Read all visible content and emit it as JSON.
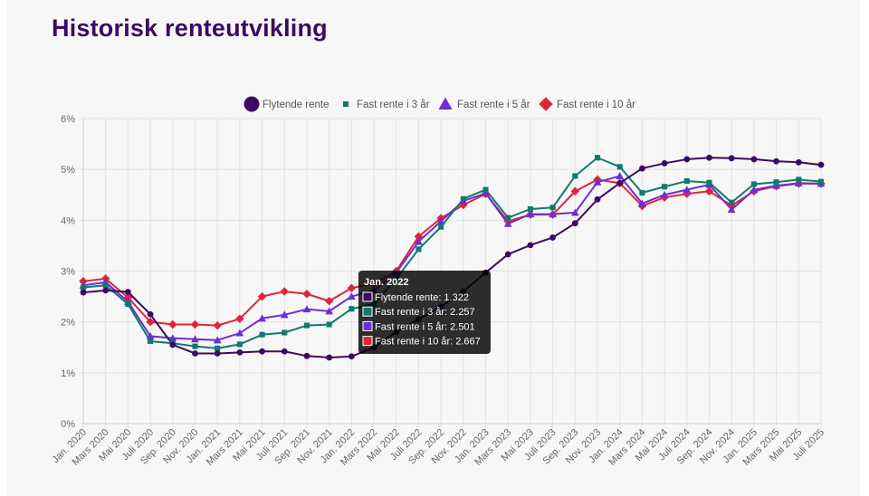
{
  "page": {
    "title": "Historisk renteutvikling"
  },
  "chart_data": {
    "type": "line",
    "title": "Historisk renteutvikling",
    "xlabel": "",
    "ylabel": "",
    "ylim": [
      0,
      6
    ],
    "y_ticks": [
      "0%",
      "1%",
      "2%",
      "3%",
      "4%",
      "5%",
      "6%"
    ],
    "grid": true,
    "legend_position": "top",
    "x": [
      "Jan. 2020",
      "Mars 2020",
      "Mai 2020",
      "Juli 2020",
      "Sep. 2020",
      "Nov. 2020",
      "Jan. 2021",
      "Mars 2021",
      "Mai 2021",
      "Juli 2021",
      "Sep. 2021",
      "Nov. 2021",
      "Jan. 2022",
      "Mars 2022",
      "Mai 2022",
      "Juli 2022",
      "Sep. 2022",
      "Nov. 2022",
      "Jan. 2023",
      "Mars 2023",
      "Mai 2023",
      "Juli 2023",
      "Sep. 2023",
      "Nov. 2023",
      "Jan. 2024",
      "Mars 2024",
      "Mai 2024",
      "Juli 2024",
      "Sep. 2024",
      "Nov. 2024",
      "Jan. 2025",
      "Mars 2025",
      "Mai 2025",
      "Juli 2025"
    ],
    "series": [
      {
        "name": "Flytende rente",
        "color": "#3b0a63",
        "marker": "circle",
        "values": [
          2.58,
          2.62,
          2.59,
          2.15,
          1.55,
          1.38,
          1.38,
          1.4,
          1.42,
          1.42,
          1.33,
          1.3,
          1.322,
          1.5,
          1.8,
          2.05,
          2.3,
          2.6,
          2.97,
          3.33,
          3.51,
          3.66,
          3.94,
          4.41,
          4.73,
          5.02,
          5.12,
          5.2,
          5.23,
          5.22,
          5.2,
          5.16,
          5.14,
          5.09
        ]
      },
      {
        "name": "Fast rente i 3 år",
        "color": "#0f7b6c",
        "marker": "square",
        "values": [
          2.68,
          2.72,
          2.35,
          1.62,
          1.58,
          1.52,
          1.48,
          1.56,
          1.75,
          1.79,
          1.93,
          1.95,
          2.257,
          2.35,
          2.85,
          3.43,
          3.87,
          4.42,
          4.6,
          4.05,
          4.22,
          4.25,
          4.87,
          5.23,
          5.05,
          4.54,
          4.66,
          4.77,
          4.74,
          4.35,
          4.71,
          4.75,
          4.8,
          4.76
        ]
      },
      {
        "name": "Fast rente i 5 år",
        "color": "#6b2fd6",
        "marker": "triangle",
        "values": [
          2.72,
          2.78,
          2.4,
          1.72,
          1.68,
          1.66,
          1.64,
          1.78,
          2.07,
          2.14,
          2.25,
          2.21,
          2.501,
          2.62,
          2.97,
          3.58,
          3.98,
          4.38,
          4.53,
          3.93,
          4.12,
          4.12,
          4.15,
          4.75,
          4.87,
          4.33,
          4.5,
          4.6,
          4.7,
          4.21,
          4.6,
          4.68,
          4.73,
          4.72
        ]
      },
      {
        "name": "Fast rente i 10 år",
        "color": "#e0243b",
        "marker": "diamond",
        "values": [
          2.8,
          2.85,
          2.48,
          2.0,
          1.95,
          1.95,
          1.93,
          2.06,
          2.5,
          2.6,
          2.55,
          2.41,
          2.667,
          2.75,
          3.0,
          3.68,
          4.04,
          4.3,
          4.52,
          3.98,
          4.11,
          4.11,
          4.57,
          4.8,
          4.73,
          4.28,
          4.45,
          4.52,
          4.57,
          4.29,
          4.57,
          4.67,
          4.72,
          4.72
        ]
      }
    ],
    "tooltip": {
      "title": "Jan. 2022",
      "lines": [
        "Flytende rente: 1.322",
        "Fast rente i 3 år: 2.257",
        "Fast rente i 5 år: 2.501",
        "Fast rente i 10 år: 2.667"
      ]
    }
  }
}
